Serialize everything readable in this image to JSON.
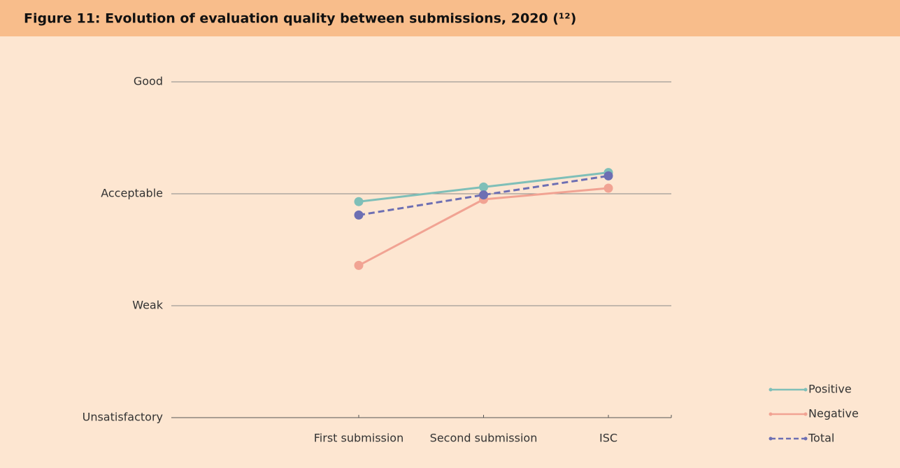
{
  "chart_data": {
    "type": "line",
    "title": "Figure 11: Evolution of evaluation quality between submissions, 2020 (¹²)",
    "categories": [
      "First submission",
      "Second submission",
      "ISC"
    ],
    "series": [
      {
        "name": "Positive",
        "color": "#7fbfb8",
        "dashed": false,
        "values": [
          2.93,
          3.06,
          3.19
        ]
      },
      {
        "name": "Negative",
        "color": "#f1a393",
        "dashed": false,
        "values": [
          2.36,
          2.95,
          3.05
        ]
      },
      {
        "name": "Total",
        "color": "#6d6fb3",
        "dashed": true,
        "values": [
          2.81,
          2.99,
          3.16
        ]
      }
    ],
    "ylim": [
      1,
      4
    ],
    "yticks": [
      {
        "value": 1,
        "label": "Unsatisfactory"
      },
      {
        "value": 2,
        "label": "Weak"
      },
      {
        "value": 3,
        "label": "Acceptable"
      },
      {
        "value": 4,
        "label": "Good"
      }
    ],
    "grid": true,
    "legend": "bottom-right"
  }
}
